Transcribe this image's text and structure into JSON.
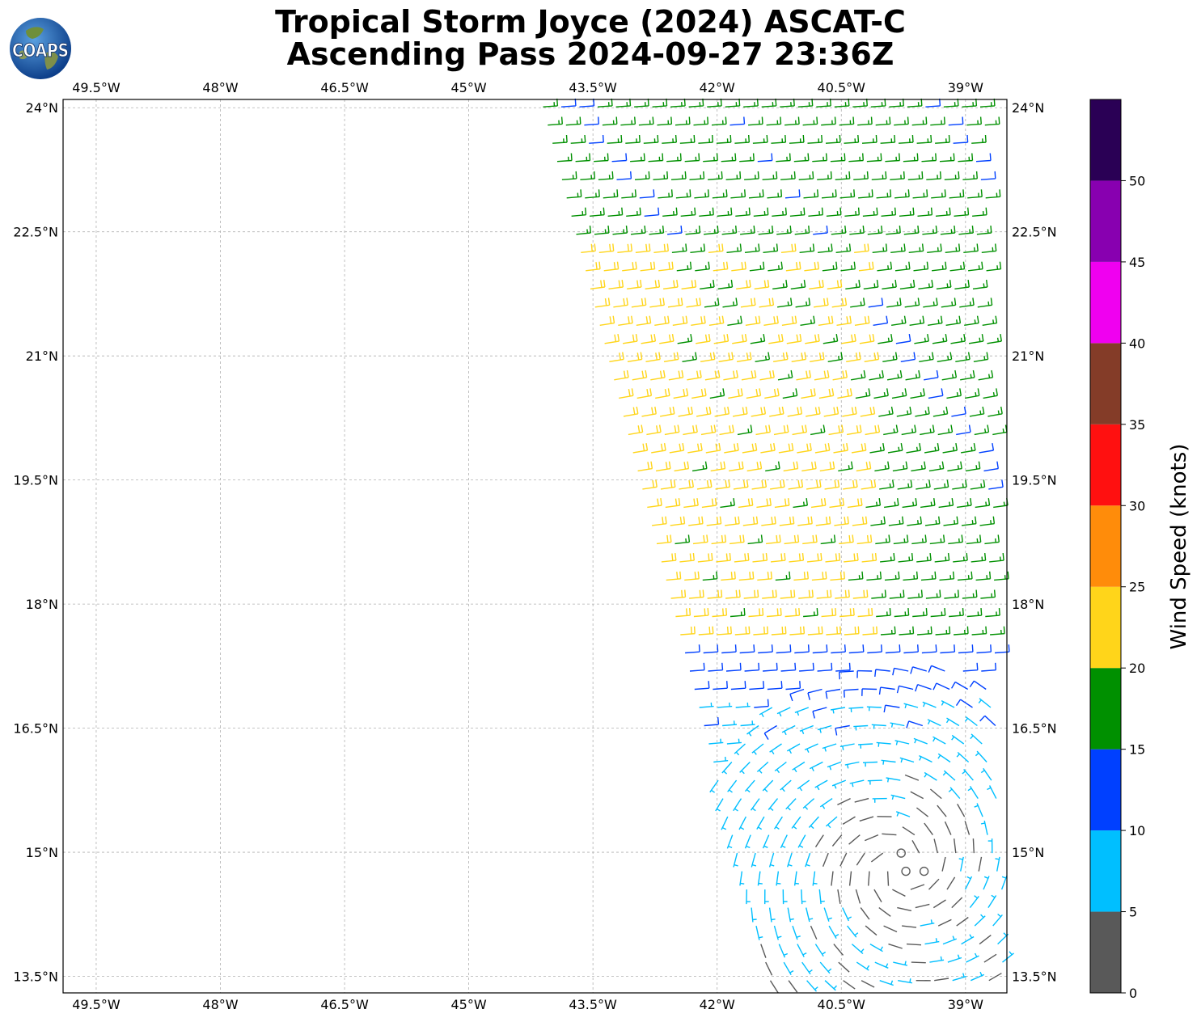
{
  "title": {
    "line1": "Tropical Storm Joyce (2024) ASCAT-C",
    "line2": "Ascending Pass 2024-09-27 23:36Z"
  },
  "logo": {
    "text": "COAPS",
    "icon": "globe-logo-icon"
  },
  "map": {
    "lon_ticks": [
      "49.5°W",
      "48°W",
      "46.5°W",
      "45°W",
      "43.5°W",
      "42°W",
      "40.5°W",
      "39°W"
    ],
    "lon_values": [
      -49.5,
      -48,
      -46.5,
      -45,
      -43.5,
      -42,
      -40.5,
      -39
    ],
    "lat_ticks": [
      "24°N",
      "22.5°N",
      "21°N",
      "19.5°N",
      "18°N",
      "16.5°N",
      "15°N",
      "13.5°N"
    ],
    "lat_values": [
      24,
      22.5,
      21,
      19.5,
      18,
      16.5,
      15,
      13.5
    ],
    "lon_range": [
      -49.9,
      -38.5
    ],
    "lat_range": [
      13.3,
      24.1
    ],
    "grid": true,
    "storm_center": {
      "lon": -39.8,
      "lat": 14.8
    }
  },
  "colorbar": {
    "label": "Wind Speed (knots)",
    "bounds": [
      0,
      5,
      10,
      15,
      20,
      25,
      30,
      35,
      40,
      45,
      50,
      55
    ],
    "tick_labels": [
      "0",
      "5",
      "10",
      "15",
      "20",
      "25",
      "30",
      "35",
      "40",
      "45",
      "50"
    ],
    "colors": [
      "#595959",
      "#00bfff",
      "#0040ff",
      "#009000",
      "#ffd51a",
      "#ff8c0a",
      "#ff1010",
      "#843c28",
      "#f000f0",
      "#8800b0",
      "#2a0055"
    ]
  }
}
